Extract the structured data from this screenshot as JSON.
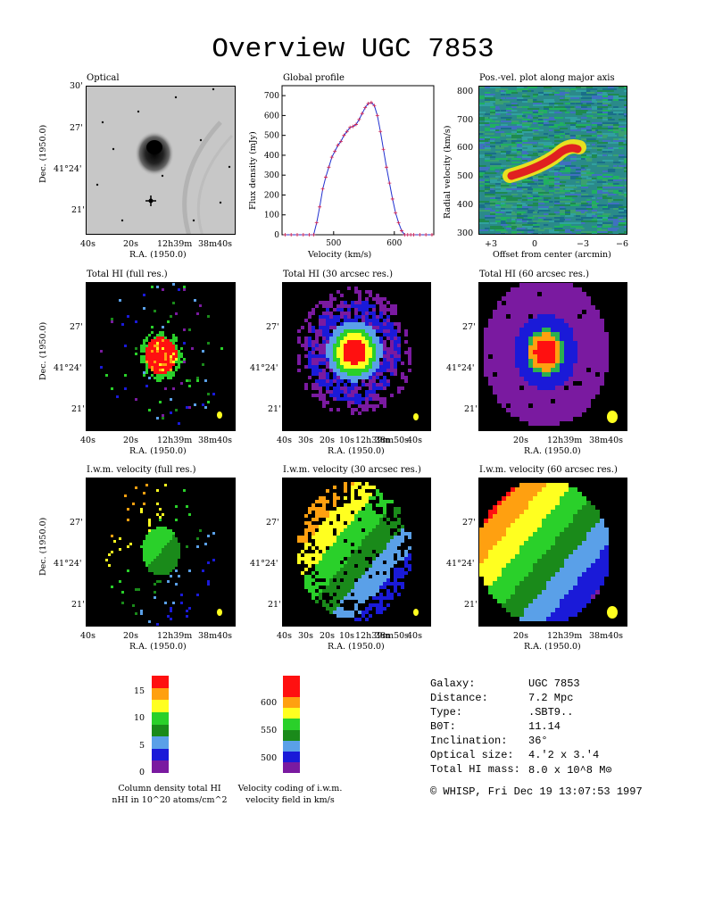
{
  "title": "Overview UGC 7853",
  "panels": {
    "optical": "Optical",
    "profile": "Global profile",
    "pv": "Pos.-vel. plot along major axis",
    "hi_full": "Total HI (full res.)",
    "hi_30": "Total HI (30 arcsec res.)",
    "hi_60": "Total HI (60 arcsec res.)",
    "vel_full": "I.w.m. velocity (full res.)",
    "vel_30": "I.w.m. velocity (30 arcsec res.)",
    "vel_60": "I.w.m. velocity (60 arcsec res.)"
  },
  "axes": {
    "ra": "R.A. (1950.0)",
    "dec": "Dec. (1950.0)",
    "dec_ticks": [
      "30'",
      "27'",
      "41°24'",
      "21'"
    ],
    "ra_ticks_std": [
      "40s",
      "20s",
      "12h39m",
      "38m40s"
    ],
    "ra_ticks_30": [
      "40s",
      "30s",
      "20s",
      "10s",
      "12h39m",
      "38m50s",
      "40s"
    ],
    "ra_ticks_60": [
      "20s",
      "12h39m",
      "38m40s"
    ],
    "flux_label": "Flux density (mJy)",
    "vel_label": "Velocity (km/s)",
    "radvel_label": "Radial velocity (km/s)",
    "offset_label": "Offset from center (arcmin)"
  },
  "colorbars": {
    "column": {
      "ticks": [
        "15",
        "10",
        "5",
        "0"
      ],
      "caption1": "Column density total HI",
      "caption2": "nHI in 10^20 atoms/cm^2"
    },
    "velocity": {
      "ticks": [
        "600",
        "550",
        "500"
      ],
      "caption1": "Velocity coding of i.w.m.",
      "caption2": "velocity field in km/s"
    }
  },
  "info": {
    "galaxy_label": "Galaxy:",
    "galaxy": "UGC 7853",
    "distance_label": "Distance:",
    "distance": "7.2 Mpc",
    "type_label": "Type:",
    "type": ".SBT9..",
    "bt_label": "B0T:",
    "bt": "11.14",
    "incl_label": "Inclination:",
    "incl": "36°",
    "size_label": "Optical size:",
    "size": "4.'2 x 3.'4",
    "mass_label": "Total HI mass:",
    "mass": "8.0 x 10^8 M⊙"
  },
  "footer": "© WHISP, Fri Dec 19 13:07:53 1997",
  "chart_data": {
    "type": "line",
    "title": "Global profile",
    "xlabel": "Velocity (km/s)",
    "ylabel": "Flux density (mJy)",
    "xlim": [
      415,
      665
    ],
    "ylim": [
      0,
      750
    ],
    "x_ticks": [
      "500",
      "600"
    ],
    "y_ticks": [
      "0",
      "100",
      "200",
      "300",
      "400",
      "500",
      "600",
      "700"
    ],
    "x": [
      420,
      430,
      440,
      450,
      460,
      467,
      472,
      477,
      482,
      487,
      492,
      497,
      502,
      507,
      512,
      517,
      522,
      527,
      532,
      537,
      542,
      547,
      552,
      557,
      562,
      567,
      572,
      577,
      582,
      587,
      592,
      597,
      602,
      607,
      612,
      617,
      622,
      627,
      632,
      642,
      652,
      662
    ],
    "values": [
      0,
      0,
      0,
      0,
      0,
      0,
      60,
      140,
      230,
      290,
      340,
      390,
      420,
      450,
      470,
      500,
      520,
      540,
      545,
      555,
      580,
      610,
      640,
      660,
      665,
      650,
      600,
      520,
      430,
      340,
      260,
      180,
      110,
      60,
      20,
      0,
      0,
      0,
      0,
      0,
      0,
      0
    ]
  }
}
